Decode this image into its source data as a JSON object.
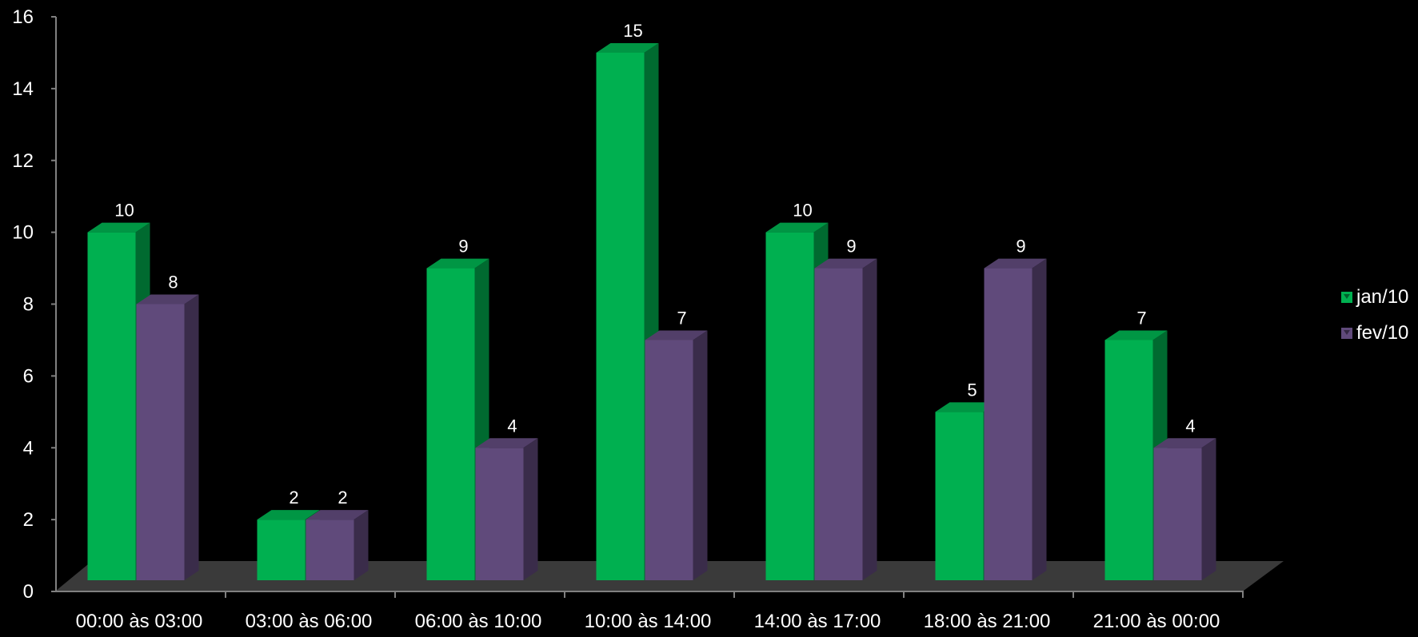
{
  "colors": {
    "background": "#000000",
    "jan": "#00B050",
    "fev": "#604A7B"
  },
  "legend": {
    "items": [
      "jan/10",
      "fev/10"
    ]
  },
  "chart_data": {
    "type": "bar",
    "categories": [
      "00:00 às 03:00",
      "03:00 às 06:00",
      "06:00 às 10:00",
      "10:00 às 14:00",
      "14:00 às 17:00",
      "18:00 às 21:00",
      "21:00 às 00:00"
    ],
    "series": [
      {
        "name": "jan/10",
        "values": [
          10,
          2,
          9,
          15,
          10,
          5,
          7
        ]
      },
      {
        "name": "fev/10",
        "values": [
          8,
          2,
          4,
          7,
          9,
          9,
          4
        ]
      }
    ],
    "ylim": [
      0,
      16
    ],
    "yticks": [
      0,
      2,
      4,
      6,
      8,
      10,
      12,
      14,
      16
    ],
    "data_labels": true,
    "legend_position": "right",
    "grid": false,
    "style": "3d-clustered-column"
  }
}
